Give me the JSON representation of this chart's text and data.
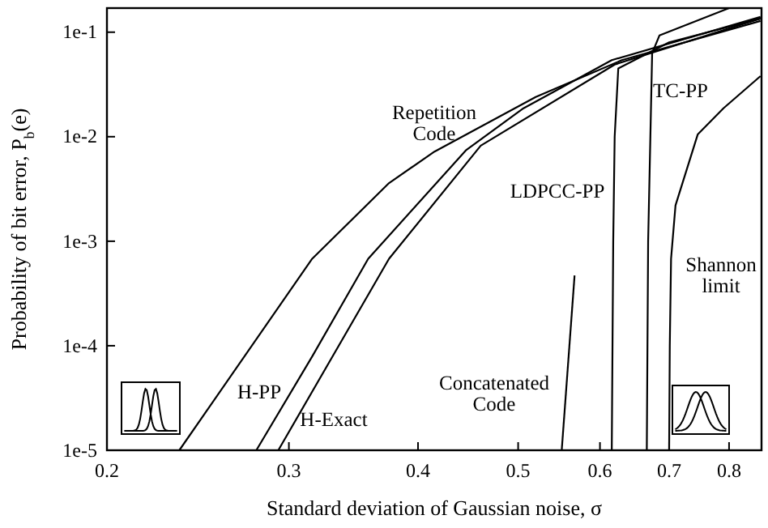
{
  "chart_data": {
    "type": "line",
    "xlabel": "Standard deviation of Gaussian noise, σ",
    "ylabel": "Probability of bit error, P$_{b}$(e)",
    "log": "xy",
    "xlim": [
      0.2,
      0.86
    ],
    "ylim": [
      1e-05,
      0.17
    ],
    "xticks": [
      0.2,
      0.3,
      0.4,
      0.5,
      0.6,
      0.7,
      0.8
    ],
    "yticks": [
      {
        "value": 1e-05,
        "label": "1e-5"
      },
      {
        "value": 0.0001,
        "label": "1e-4"
      },
      {
        "value": 0.001,
        "label": "1e-3"
      },
      {
        "value": 0.01,
        "label": "1e-2"
      },
      {
        "value": 0.1,
        "label": "1e-1"
      }
    ],
    "grid": false,
    "line_style": "solid",
    "marker": "none",
    "series": [
      {
        "name": "Repetition Code",
        "color": "#000000",
        "x": [
          0.235,
          0.316,
          0.375,
          0.415,
          0.52,
          0.63,
          0.858
        ],
        "values": [
          1e-05,
          0.00068,
          0.0036,
          0.0072,
          0.024,
          0.054,
          0.128
        ]
      },
      {
        "name": "H-PP",
        "color": "#000000",
        "x": [
          0.279,
          0.316,
          0.358,
          0.445,
          0.506,
          0.616,
          0.858
        ],
        "values": [
          1e-05,
          7.9e-05,
          0.00068,
          0.0074,
          0.0187,
          0.054,
          0.14
        ]
      },
      {
        "name": "H-Exact",
        "color": "#000000",
        "x": [
          0.293,
          0.375,
          0.46,
          0.62,
          0.858
        ],
        "values": [
          1e-05,
          0.00068,
          0.0082,
          0.049,
          0.135
        ]
      },
      {
        "name": "LDPCC-PP",
        "color": "#000000",
        "x": [
          0.616,
          0.618,
          0.62,
          0.625,
          0.7,
          0.858
        ],
        "values": [
          1e-05,
          0.001,
          0.01,
          0.045,
          0.08,
          0.135
        ]
      },
      {
        "name": "TC-PP",
        "color": "#000000",
        "x": [
          0.666,
          0.668,
          0.674,
          0.685,
          0.8
        ],
        "values": [
          1e-05,
          0.001,
          0.063,
          0.093,
          0.17
        ]
      },
      {
        "name": "Concatenated Code",
        "color": "#000000",
        "x": [
          0.551,
          0.567
        ],
        "values": [
          1e-05,
          0.00047
        ]
      },
      {
        "name": "Shannon limit",
        "color": "#000000",
        "x": [
          0.7,
          0.701,
          0.703,
          0.71,
          0.746,
          0.79,
          0.858
        ],
        "values": [
          1e-05,
          0.0001,
          0.00068,
          0.0022,
          0.0105,
          0.0187,
          0.038
        ]
      }
    ]
  }
}
